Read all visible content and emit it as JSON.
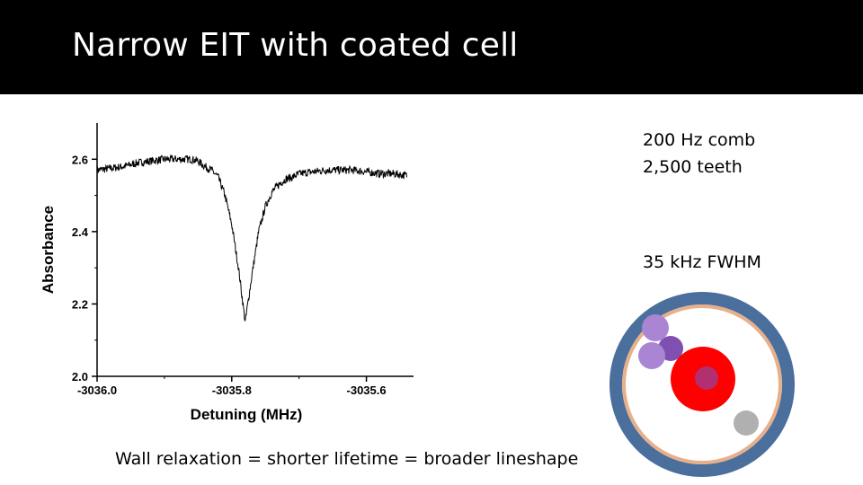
{
  "slide": {
    "title": "Narrow EIT with coated cell",
    "notes": [
      "200 Hz comb",
      "2,500 teeth",
      "35 kHz FWHM"
    ],
    "caption": "Wall relaxation = shorter lifetime  = broader lineshape"
  },
  "chart_data": {
    "type": "line",
    "xlabel": "Detuning (MHz)",
    "ylabel": "Absorbance",
    "xlim": [
      -3036.0,
      -3035.53
    ],
    "ylim": [
      2.0,
      2.7
    ],
    "xticks": [
      -3036.0,
      -3035.8,
      -3035.6
    ],
    "xtick_labels": [
      "-3036.0",
      "-3035.8",
      "-3035.6"
    ],
    "yticks": [
      2.0,
      2.2,
      2.4,
      2.6
    ],
    "ytick_labels": [
      "2.0",
      "2.2",
      "2.4",
      "2.6"
    ],
    "grid": false,
    "series": [
      {
        "color": "#000000",
        "x": [
          -3036.0,
          -3035.98,
          -3035.96,
          -3035.94,
          -3035.92,
          -3035.9,
          -3035.88,
          -3035.87,
          -3035.86,
          -3035.85,
          -3035.84,
          -3035.83,
          -3035.82,
          -3035.81,
          -3035.8,
          -3035.79,
          -3035.78,
          -3035.77,
          -3035.76,
          -3035.75,
          -3035.74,
          -3035.73,
          -3035.72,
          -3035.71,
          -3035.7,
          -3035.68,
          -3035.66,
          -3035.64,
          -3035.62,
          -3035.6,
          -3035.58,
          -3035.56,
          -3035.54
        ],
        "y": [
          2.57,
          2.575,
          2.58,
          2.59,
          2.595,
          2.6,
          2.6,
          2.6,
          2.6,
          2.595,
          2.58,
          2.57,
          2.55,
          2.5,
          2.42,
          2.3,
          2.15,
          2.28,
          2.4,
          2.47,
          2.51,
          2.53,
          2.545,
          2.55,
          2.56,
          2.565,
          2.57,
          2.57,
          2.57,
          2.565,
          2.56,
          2.56,
          2.555
        ]
      }
    ]
  },
  "illustration": {
    "outer_ring_color": "#4a6f9c",
    "coating_color": "#e8b08a",
    "atom_color": "#ff0000",
    "atom_core_color": "#b03070",
    "particle_colors": [
      "#a985d3",
      "#8050b0",
      "#a985d3",
      "#b0b0b0"
    ]
  }
}
